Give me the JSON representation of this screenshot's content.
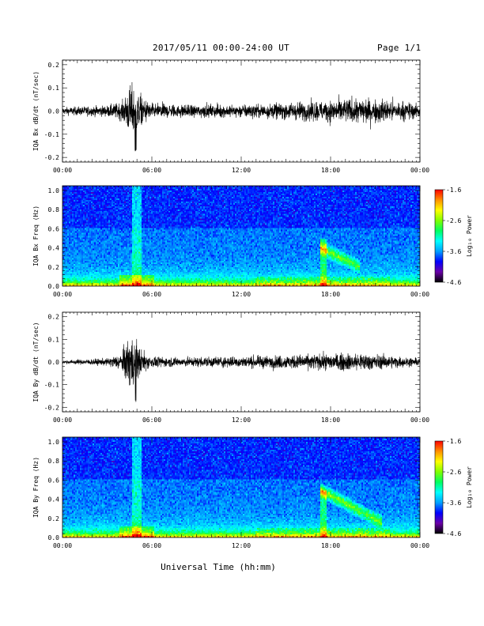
{
  "header": {
    "title": "2017/05/11  00:00-24:00 UT",
    "page": "Page 1/1"
  },
  "xaxis": {
    "label": "Universal Time (hh:mm)",
    "ticks": [
      "00:00",
      "06:00",
      "12:00",
      "18:00",
      "00:00"
    ],
    "range_hours": [
      0,
      24
    ]
  },
  "colorbar": {
    "label": "Log₁₀ Power",
    "ticks": [
      "-1.6",
      "-2.6",
      "-3.6",
      "-4.6"
    ],
    "range": [
      -4.6,
      -1.6
    ],
    "colors": [
      "#000000",
      "#6a00a8",
      "#0000ff",
      "#00a0ff",
      "#00ffff",
      "#00ff60",
      "#80ff00",
      "#ffff00",
      "#ff9000",
      "#ff0000"
    ]
  },
  "chart_data": [
    {
      "type": "line",
      "ylabel": "IQA Bx dB/dt (nT/sec)",
      "ylim": [
        -0.22,
        0.22
      ],
      "yticks": [
        "0.2",
        "0.1",
        "0.0",
        "-0.1",
        "-0.2"
      ],
      "envelope": {
        "x_hours": [
          0,
          3,
          4,
          4.3,
          4.6,
          5.0,
          5.4,
          6,
          8,
          10,
          12,
          14,
          16,
          18,
          20,
          22,
          24
        ],
        "amplitude": [
          0.02,
          0.03,
          0.05,
          0.1,
          0.15,
          0.12,
          0.07,
          0.04,
          0.035,
          0.035,
          0.035,
          0.04,
          0.05,
          0.06,
          0.07,
          0.06,
          0.04
        ],
        "neg_min": -0.18
      }
    },
    {
      "type": "heatmap",
      "ylabel": "IQA Bx Freq (Hz)",
      "ylim": [
        0,
        1.05
      ],
      "yticks": [
        "1.0",
        "0.8",
        "0.6",
        "0.4",
        "0.2",
        "0.0"
      ],
      "features": {
        "event_start_hour": 17.3,
        "event_end_hour": 20.0,
        "event_freq_hz": [
          0.25,
          0.45
        ],
        "burst_hour": 5.0
      }
    },
    {
      "type": "line",
      "ylabel": "IQA By dB/dt (nT/sec)",
      "ylim": [
        -0.22,
        0.22
      ],
      "yticks": [
        "0.2",
        "0.1",
        "0.0",
        "-0.1",
        "-0.2"
      ],
      "envelope": {
        "x_hours": [
          0,
          3,
          4,
          4.3,
          4.6,
          5.0,
          5.4,
          6,
          8,
          10,
          12,
          14,
          16,
          18,
          20,
          22,
          24
        ],
        "amplitude": [
          0.01,
          0.02,
          0.05,
          0.12,
          0.16,
          0.12,
          0.06,
          0.03,
          0.025,
          0.03,
          0.03,
          0.035,
          0.04,
          0.045,
          0.05,
          0.035,
          0.02
        ],
        "neg_min": -0.19
      }
    },
    {
      "type": "heatmap",
      "ylabel": "IQA By Freq (Hz)",
      "ylim": [
        0,
        1.05
      ],
      "yticks": [
        "1.0",
        "0.8",
        "0.6",
        "0.4",
        "0.2",
        "0.0"
      ],
      "features": {
        "event_start_hour": 17.3,
        "event_end_hour": 21.5,
        "event_freq_hz": [
          0.2,
          0.55
        ],
        "burst_hour": 5.0
      }
    }
  ]
}
